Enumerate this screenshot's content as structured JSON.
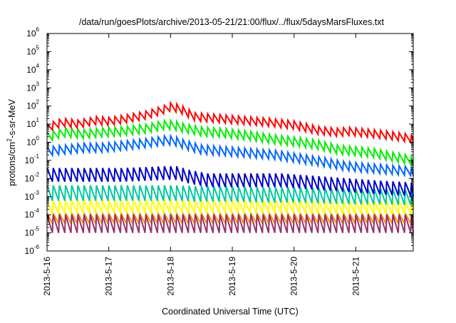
{
  "chart_data": {
    "type": "line",
    "title": "/data/run/goesPlots/archive/2013-05-21/21:00/flux/../flux/5daysMarsFluxes.txt",
    "xlabel": "Coordinated Universal Time (UTC)",
    "ylabel": {
      "prefix": "protons/cm",
      "sup": "2",
      "suffix": "-s-sr-MeV"
    },
    "yscale": "log",
    "ylim": [
      1e-06,
      1000000.0
    ],
    "y_ticks": [
      {
        "value": -6,
        "base": "10",
        "exp": "-6"
      },
      {
        "value": -5,
        "base": "10",
        "exp": "-5"
      },
      {
        "value": -4,
        "base": "10",
        "exp": "-4"
      },
      {
        "value": -3,
        "base": "10",
        "exp": "-3"
      },
      {
        "value": -2,
        "base": "10",
        "exp": "-2"
      },
      {
        "value": -1,
        "base": "10",
        "exp": "-1"
      },
      {
        "value": 0,
        "base": "10",
        "exp": "0"
      },
      {
        "value": 1,
        "base": "10",
        "exp": "1"
      },
      {
        "value": 2,
        "base": "10",
        "exp": "2"
      },
      {
        "value": 3,
        "base": "10",
        "exp": "3"
      },
      {
        "value": 4,
        "base": "10",
        "exp": "4"
      },
      {
        "value": 5,
        "base": "10",
        "exp": "5"
      },
      {
        "value": 6,
        "base": "10",
        "exp": "6"
      }
    ],
    "x_ticks": [
      "2013-5-16",
      "2013-5-17",
      "2013-5-18",
      "2013-5-19",
      "2013-5-20",
      "2013-5-21"
    ],
    "xlim_days": [
      0,
      5.93
    ],
    "grid": false,
    "legend": "none",
    "series": [
      {
        "color": "#ff0000",
        "key": [
          [
            0.0,
            0.8
          ],
          [
            0.25,
            1.1
          ],
          [
            0.5,
            1.0
          ],
          [
            0.8,
            1.2
          ],
          [
            1.0,
            1.15
          ],
          [
            1.3,
            1.3
          ],
          [
            1.6,
            1.5
          ],
          [
            1.85,
            1.75
          ],
          [
            2.0,
            1.95
          ],
          [
            2.15,
            1.85
          ],
          [
            2.4,
            1.4
          ],
          [
            2.8,
            1.3
          ],
          [
            3.2,
            1.2
          ],
          [
            3.6,
            1.1
          ],
          [
            4.0,
            0.95
          ],
          [
            4.4,
            0.65
          ],
          [
            4.7,
            0.55
          ],
          [
            4.9,
            0.6
          ],
          [
            5.2,
            0.5
          ],
          [
            5.5,
            0.4
          ],
          [
            5.93,
            0.2
          ]
        ],
        "amp": 0.45
      },
      {
        "color": "#00ee00",
        "key": [
          [
            0.0,
            0.3
          ],
          [
            0.3,
            0.55
          ],
          [
            0.6,
            0.45
          ],
          [
            0.9,
            0.55
          ],
          [
            1.2,
            0.6
          ],
          [
            1.6,
            0.75
          ],
          [
            1.9,
            0.95
          ],
          [
            2.05,
            0.95
          ],
          [
            2.2,
            0.8
          ],
          [
            2.5,
            0.6
          ],
          [
            2.9,
            0.5
          ],
          [
            3.3,
            0.35
          ],
          [
            3.7,
            0.15
          ],
          [
            4.1,
            0.0
          ],
          [
            4.4,
            -0.15
          ],
          [
            4.7,
            -0.4
          ],
          [
            5.0,
            -0.5
          ],
          [
            5.3,
            -0.6
          ],
          [
            5.6,
            -0.8
          ],
          [
            5.93,
            -1.0
          ]
        ],
        "amp": 0.5
      },
      {
        "color": "#0066ff",
        "key": [
          [
            0.0,
            -0.5
          ],
          [
            0.3,
            -0.4
          ],
          [
            0.6,
            -0.3
          ],
          [
            0.9,
            -0.3
          ],
          [
            1.2,
            -0.2
          ],
          [
            1.6,
            -0.05
          ],
          [
            1.9,
            0.1
          ],
          [
            2.05,
            0.1
          ],
          [
            2.2,
            -0.1
          ],
          [
            2.5,
            -0.4
          ],
          [
            2.9,
            -0.5
          ],
          [
            3.3,
            -0.6
          ],
          [
            3.7,
            -0.7
          ],
          [
            4.1,
            -0.9
          ],
          [
            4.5,
            -1.1
          ],
          [
            4.8,
            -1.3
          ],
          [
            5.1,
            -1.4
          ],
          [
            5.5,
            -1.5
          ],
          [
            5.93,
            -1.6
          ]
        ],
        "amp": 0.5
      },
      {
        "color": "#0000cc",
        "key": [
          [
            0.0,
            -1.8
          ],
          [
            0.4,
            -1.8
          ],
          [
            0.8,
            -1.8
          ],
          [
            1.2,
            -1.8
          ],
          [
            1.6,
            -1.75
          ],
          [
            1.9,
            -1.7
          ],
          [
            2.1,
            -1.7
          ],
          [
            2.3,
            -1.9
          ],
          [
            2.6,
            -2.1
          ],
          [
            3.0,
            -2.1
          ],
          [
            3.4,
            -2.1
          ],
          [
            3.8,
            -2.1
          ],
          [
            4.2,
            -2.2
          ],
          [
            4.6,
            -2.3
          ],
          [
            5.0,
            -2.4
          ],
          [
            5.4,
            -2.5
          ],
          [
            5.93,
            -2.6
          ]
        ],
        "amp": 0.75
      },
      {
        "color": "#00c8a0",
        "key": [
          [
            0.0,
            -2.8
          ],
          [
            0.5,
            -2.8
          ],
          [
            1.0,
            -2.8
          ],
          [
            1.5,
            -2.8
          ],
          [
            2.0,
            -2.8
          ],
          [
            2.5,
            -2.85
          ],
          [
            3.0,
            -2.85
          ],
          [
            3.5,
            -2.9
          ],
          [
            4.0,
            -2.9
          ],
          [
            4.5,
            -2.95
          ],
          [
            5.0,
            -3.0
          ],
          [
            5.5,
            -3.0
          ],
          [
            5.93,
            -3.05
          ]
        ],
        "amp": 0.85
      },
      {
        "color": "#ffff00",
        "key": [
          [
            0.0,
            -3.6
          ],
          [
            0.5,
            -3.55
          ],
          [
            1.0,
            -3.55
          ],
          [
            1.5,
            -3.55
          ],
          [
            2.0,
            -3.55
          ],
          [
            2.5,
            -3.55
          ],
          [
            3.0,
            -3.55
          ],
          [
            3.5,
            -3.55
          ],
          [
            4.0,
            -3.55
          ],
          [
            4.5,
            -3.6
          ],
          [
            5.0,
            -3.6
          ],
          [
            5.5,
            -3.6
          ],
          [
            5.93,
            -3.6
          ]
        ],
        "amp": 0.7
      },
      {
        "color": "#ff8c00",
        "key": [
          [
            0.0,
            -4.2
          ],
          [
            1.0,
            -4.2
          ],
          [
            2.0,
            -4.2
          ],
          [
            3.0,
            -4.2
          ],
          [
            4.0,
            -4.2
          ],
          [
            5.0,
            -4.2
          ],
          [
            5.93,
            -4.2
          ]
        ],
        "amp": 0.55
      },
      {
        "color": "#993366",
        "key": [
          [
            0.0,
            -4.5
          ],
          [
            1.0,
            -4.5
          ],
          [
            2.0,
            -4.5
          ],
          [
            3.0,
            -4.5
          ],
          [
            4.0,
            -4.5
          ],
          [
            5.0,
            -4.5
          ],
          [
            5.93,
            -4.5
          ]
        ],
        "amp": 1.0
      }
    ],
    "cycle_days": 0.1
  }
}
